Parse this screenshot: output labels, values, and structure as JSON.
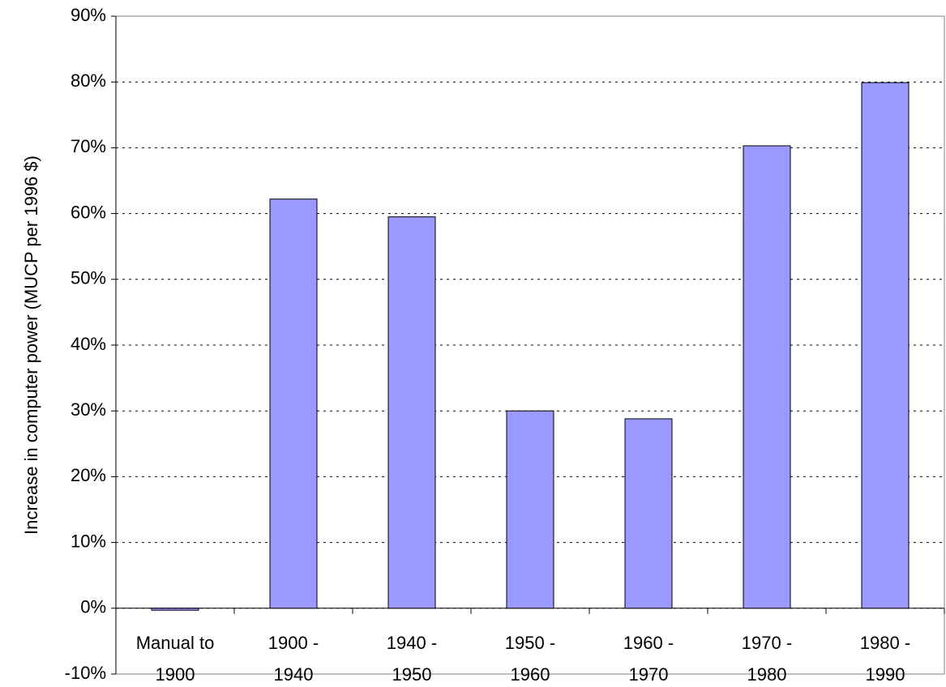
{
  "chart_data": {
    "type": "bar",
    "y_axis_label": "Increase in computer power (MUCP per 1996 $)",
    "categories": [
      "Manual to 1900",
      "1900 - 1940",
      "1940 - 1950",
      "1950 - 1960",
      "1960 - 1970",
      "1970 - 1980",
      "1980 - 1990"
    ],
    "values": [
      -0.3,
      62.2,
      59.5,
      30.0,
      28.8,
      70.3,
      79.9
    ],
    "color": "#9999ff",
    "ylim": [
      -10,
      90
    ],
    "yticks": [
      {
        "value": -10,
        "label": "-10%"
      },
      {
        "value": 0,
        "label": "0%"
      },
      {
        "value": 10,
        "label": "10%"
      },
      {
        "value": 20,
        "label": "20%"
      },
      {
        "value": 30,
        "label": "30%"
      },
      {
        "value": 40,
        "label": "40%"
      },
      {
        "value": 50,
        "label": "50%"
      },
      {
        "value": 60,
        "label": "60%"
      },
      {
        "value": 70,
        "label": "70%"
      },
      {
        "value": 80,
        "label": "80%"
      },
      {
        "value": 90,
        "label": "90%"
      }
    ],
    "grid": true
  }
}
